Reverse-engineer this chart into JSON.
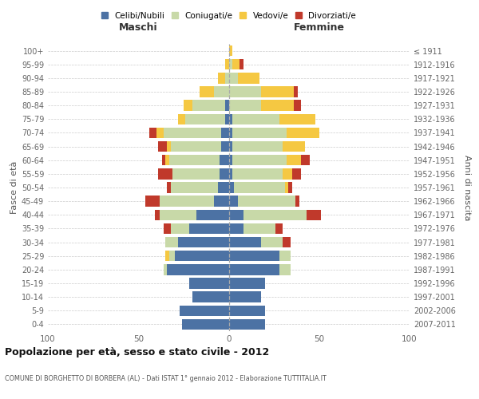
{
  "age_groups": [
    "0-4",
    "5-9",
    "10-14",
    "15-19",
    "20-24",
    "25-29",
    "30-34",
    "35-39",
    "40-44",
    "45-49",
    "50-54",
    "55-59",
    "60-64",
    "65-69",
    "70-74",
    "75-79",
    "80-84",
    "85-89",
    "90-94",
    "95-99",
    "100+"
  ],
  "birth_years": [
    "2007-2011",
    "2002-2006",
    "1997-2001",
    "1992-1996",
    "1987-1991",
    "1982-1986",
    "1977-1981",
    "1972-1976",
    "1967-1971",
    "1962-1966",
    "1957-1961",
    "1952-1956",
    "1947-1951",
    "1942-1946",
    "1937-1941",
    "1932-1936",
    "1927-1931",
    "1922-1926",
    "1917-1921",
    "1912-1916",
    "≤ 1911"
  ],
  "colors": {
    "celibi": "#4c72a4",
    "coniugati": "#c8d9a8",
    "vedovi": "#f5c842",
    "divorziati": "#c0392b"
  },
  "maschi": {
    "celibi": [
      26,
      27,
      20,
      22,
      34,
      30,
      28,
      22,
      18,
      8,
      6,
      5,
      5,
      4,
      4,
      2,
      2,
      0,
      0,
      0,
      0
    ],
    "coniugati": [
      0,
      0,
      0,
      0,
      2,
      3,
      7,
      10,
      20,
      30,
      26,
      26,
      28,
      28,
      32,
      22,
      18,
      8,
      2,
      0,
      0
    ],
    "vedovi": [
      0,
      0,
      0,
      0,
      0,
      2,
      0,
      0,
      0,
      0,
      0,
      0,
      2,
      2,
      4,
      4,
      5,
      8,
      4,
      2,
      0
    ],
    "divorziati": [
      0,
      0,
      0,
      0,
      0,
      0,
      0,
      4,
      3,
      8,
      2,
      8,
      2,
      5,
      4,
      0,
      0,
      0,
      0,
      0,
      0
    ]
  },
  "femmine": {
    "celibi": [
      20,
      20,
      18,
      20,
      28,
      28,
      18,
      8,
      8,
      5,
      3,
      2,
      2,
      2,
      2,
      2,
      0,
      0,
      0,
      0,
      0
    ],
    "coniugati": [
      0,
      0,
      0,
      0,
      6,
      6,
      12,
      18,
      35,
      32,
      28,
      28,
      30,
      28,
      30,
      26,
      18,
      18,
      5,
      2,
      0
    ],
    "vedovi": [
      0,
      0,
      0,
      0,
      0,
      0,
      0,
      0,
      0,
      0,
      2,
      5,
      8,
      12,
      18,
      20,
      18,
      18,
      12,
      4,
      2
    ],
    "divorziati": [
      0,
      0,
      0,
      0,
      0,
      0,
      4,
      4,
      8,
      2,
      2,
      5,
      5,
      0,
      0,
      0,
      4,
      2,
      0,
      2,
      0
    ]
  },
  "title": "Popolazione per età, sesso e stato civile - 2012",
  "subtitle": "COMUNE DI BORGHETTO DI BORBERA (AL) - Dati ISTAT 1° gennaio 2012 - Elaborazione TUTTITALIA.IT",
  "xlabel_left": "Maschi",
  "xlabel_right": "Femmine",
  "ylabel_left": "Fasce di età",
  "ylabel_right": "Anni di nascita",
  "xlim": 100,
  "legend_labels": [
    "Celibi/Nubili",
    "Coniugati/e",
    "Vedovi/e",
    "Divorziati/e"
  ]
}
